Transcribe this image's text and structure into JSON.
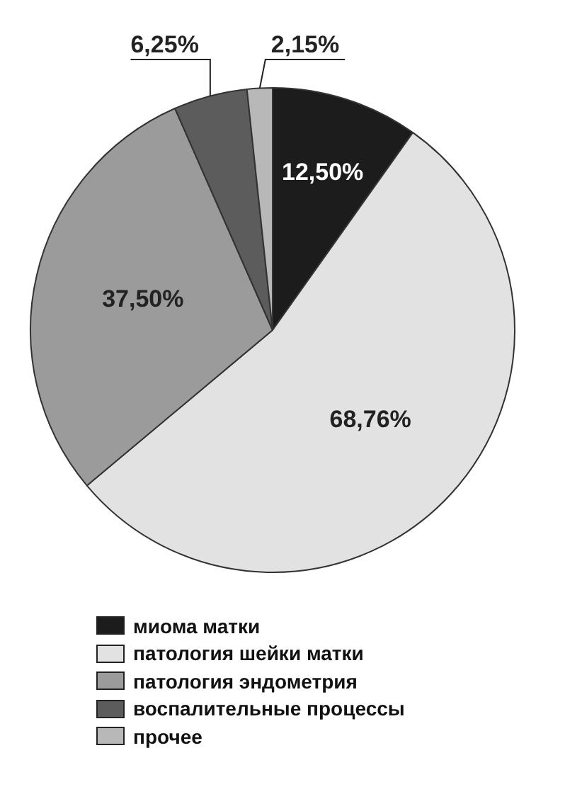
{
  "chart_data": {
    "type": "pie",
    "categories": [
      "миома матки",
      "патология шейки матки",
      "патология эндометрия",
      "воспалительные процессы",
      "прочее"
    ],
    "values": [
      12.5,
      68.76,
      37.5,
      6.25,
      2.15
    ],
    "colors": [
      "#1c1c1c",
      "#e2e2e2",
      "#9b9b9b",
      "#5c5c5c",
      "#b8b8b8"
    ],
    "value_labels": [
      "12,50%",
      "68,76%",
      "37,50%",
      "6,25%",
      "2,15%"
    ],
    "legend": "bottom"
  }
}
